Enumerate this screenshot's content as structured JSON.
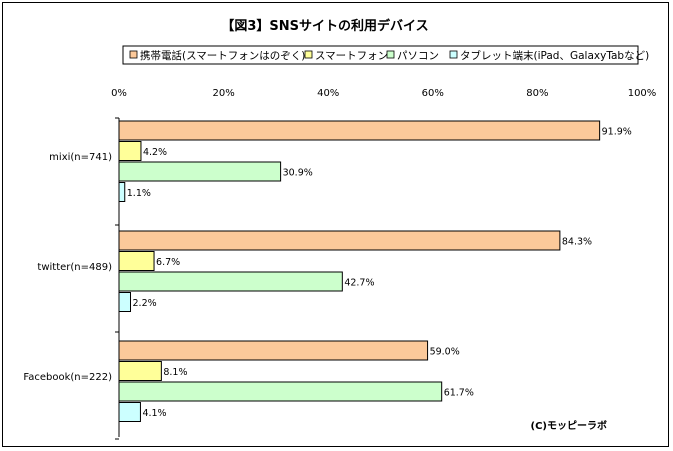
{
  "chart_data": {
    "type": "bar",
    "orientation": "horizontal",
    "title": "【図3】SNSサイトの利用デバイス",
    "categories": [
      "mixi(n=741)",
      "twitter(n=489)",
      "Facebook(n=222)"
    ],
    "series": [
      {
        "name": "携帯電話(スマートフォンはのぞく)",
        "values": [
          91.9,
          84.3,
          59.0
        ],
        "color": "#fcc99a"
      },
      {
        "name": "スマートフォン",
        "values": [
          4.2,
          6.7,
          8.1
        ],
        "color": "#ffff99"
      },
      {
        "name": "パソコン",
        "values": [
          30.9,
          42.7,
          61.7
        ],
        "color": "#ccffcc"
      },
      {
        "name": "タブレット端末(iPad、GalaxyTabなど)",
        "values": [
          1.1,
          2.2,
          4.1
        ],
        "color": "#ccffff"
      }
    ],
    "value_labels": [
      [
        "91.9%",
        "84.3%",
        "59.0%"
      ],
      [
        "4.2%",
        "6.7%",
        "8.1%"
      ],
      [
        "30.9%",
        "42.7%",
        "61.7%"
      ],
      [
        "1.1%",
        "2.2%",
        "4.1%"
      ]
    ],
    "xlim": [
      0,
      100
    ],
    "xticks": [
      "0%",
      "20%",
      "40%",
      "60%",
      "80%",
      "100%"
    ],
    "legend_position": "top",
    "grid": false
  },
  "credit": "(C)モッピーラボ"
}
